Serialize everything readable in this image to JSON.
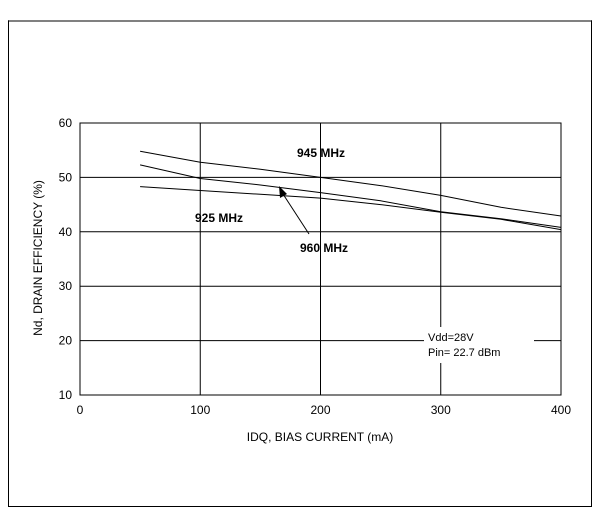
{
  "chart_data": {
    "type": "line",
    "title": "",
    "xlabel": "IDQ, BIAS CURRENT (mA)",
    "ylabel": "Nd, DRAIN EFFICIENCY (%)",
    "xlim": [
      0,
      400
    ],
    "ylim": [
      10,
      60
    ],
    "xticks": [
      0,
      100,
      200,
      300,
      400
    ],
    "yticks": [
      10,
      20,
      30,
      40,
      50,
      60
    ],
    "grid": true,
    "series": [
      {
        "name": "945 MHz",
        "x": [
          50,
          100,
          150,
          200,
          250,
          300,
          350,
          400
        ],
        "y": [
          54.8,
          52.8,
          51.5,
          50.0,
          48.5,
          46.7,
          44.5,
          42.9
        ]
      },
      {
        "name": "960 MHz",
        "x": [
          50,
          100,
          150,
          200,
          250,
          300,
          350,
          400
        ],
        "y": [
          52.3,
          49.8,
          48.6,
          47.2,
          45.7,
          43.7,
          42.4,
          40.8
        ]
      },
      {
        "name": "925 MHz",
        "x": [
          50,
          100,
          150,
          200,
          250,
          300,
          350,
          400
        ],
        "y": [
          48.3,
          47.6,
          46.9,
          46.2,
          45.0,
          43.6,
          42.3,
          40.4
        ]
      }
    ],
    "annotations": [
      "Vdd=28V",
      "Pin= 22.7 dBm"
    ],
    "colors": {
      "line": "#000000",
      "grid": "#000000",
      "frame": "#000000",
      "background": "#ffffff"
    }
  }
}
